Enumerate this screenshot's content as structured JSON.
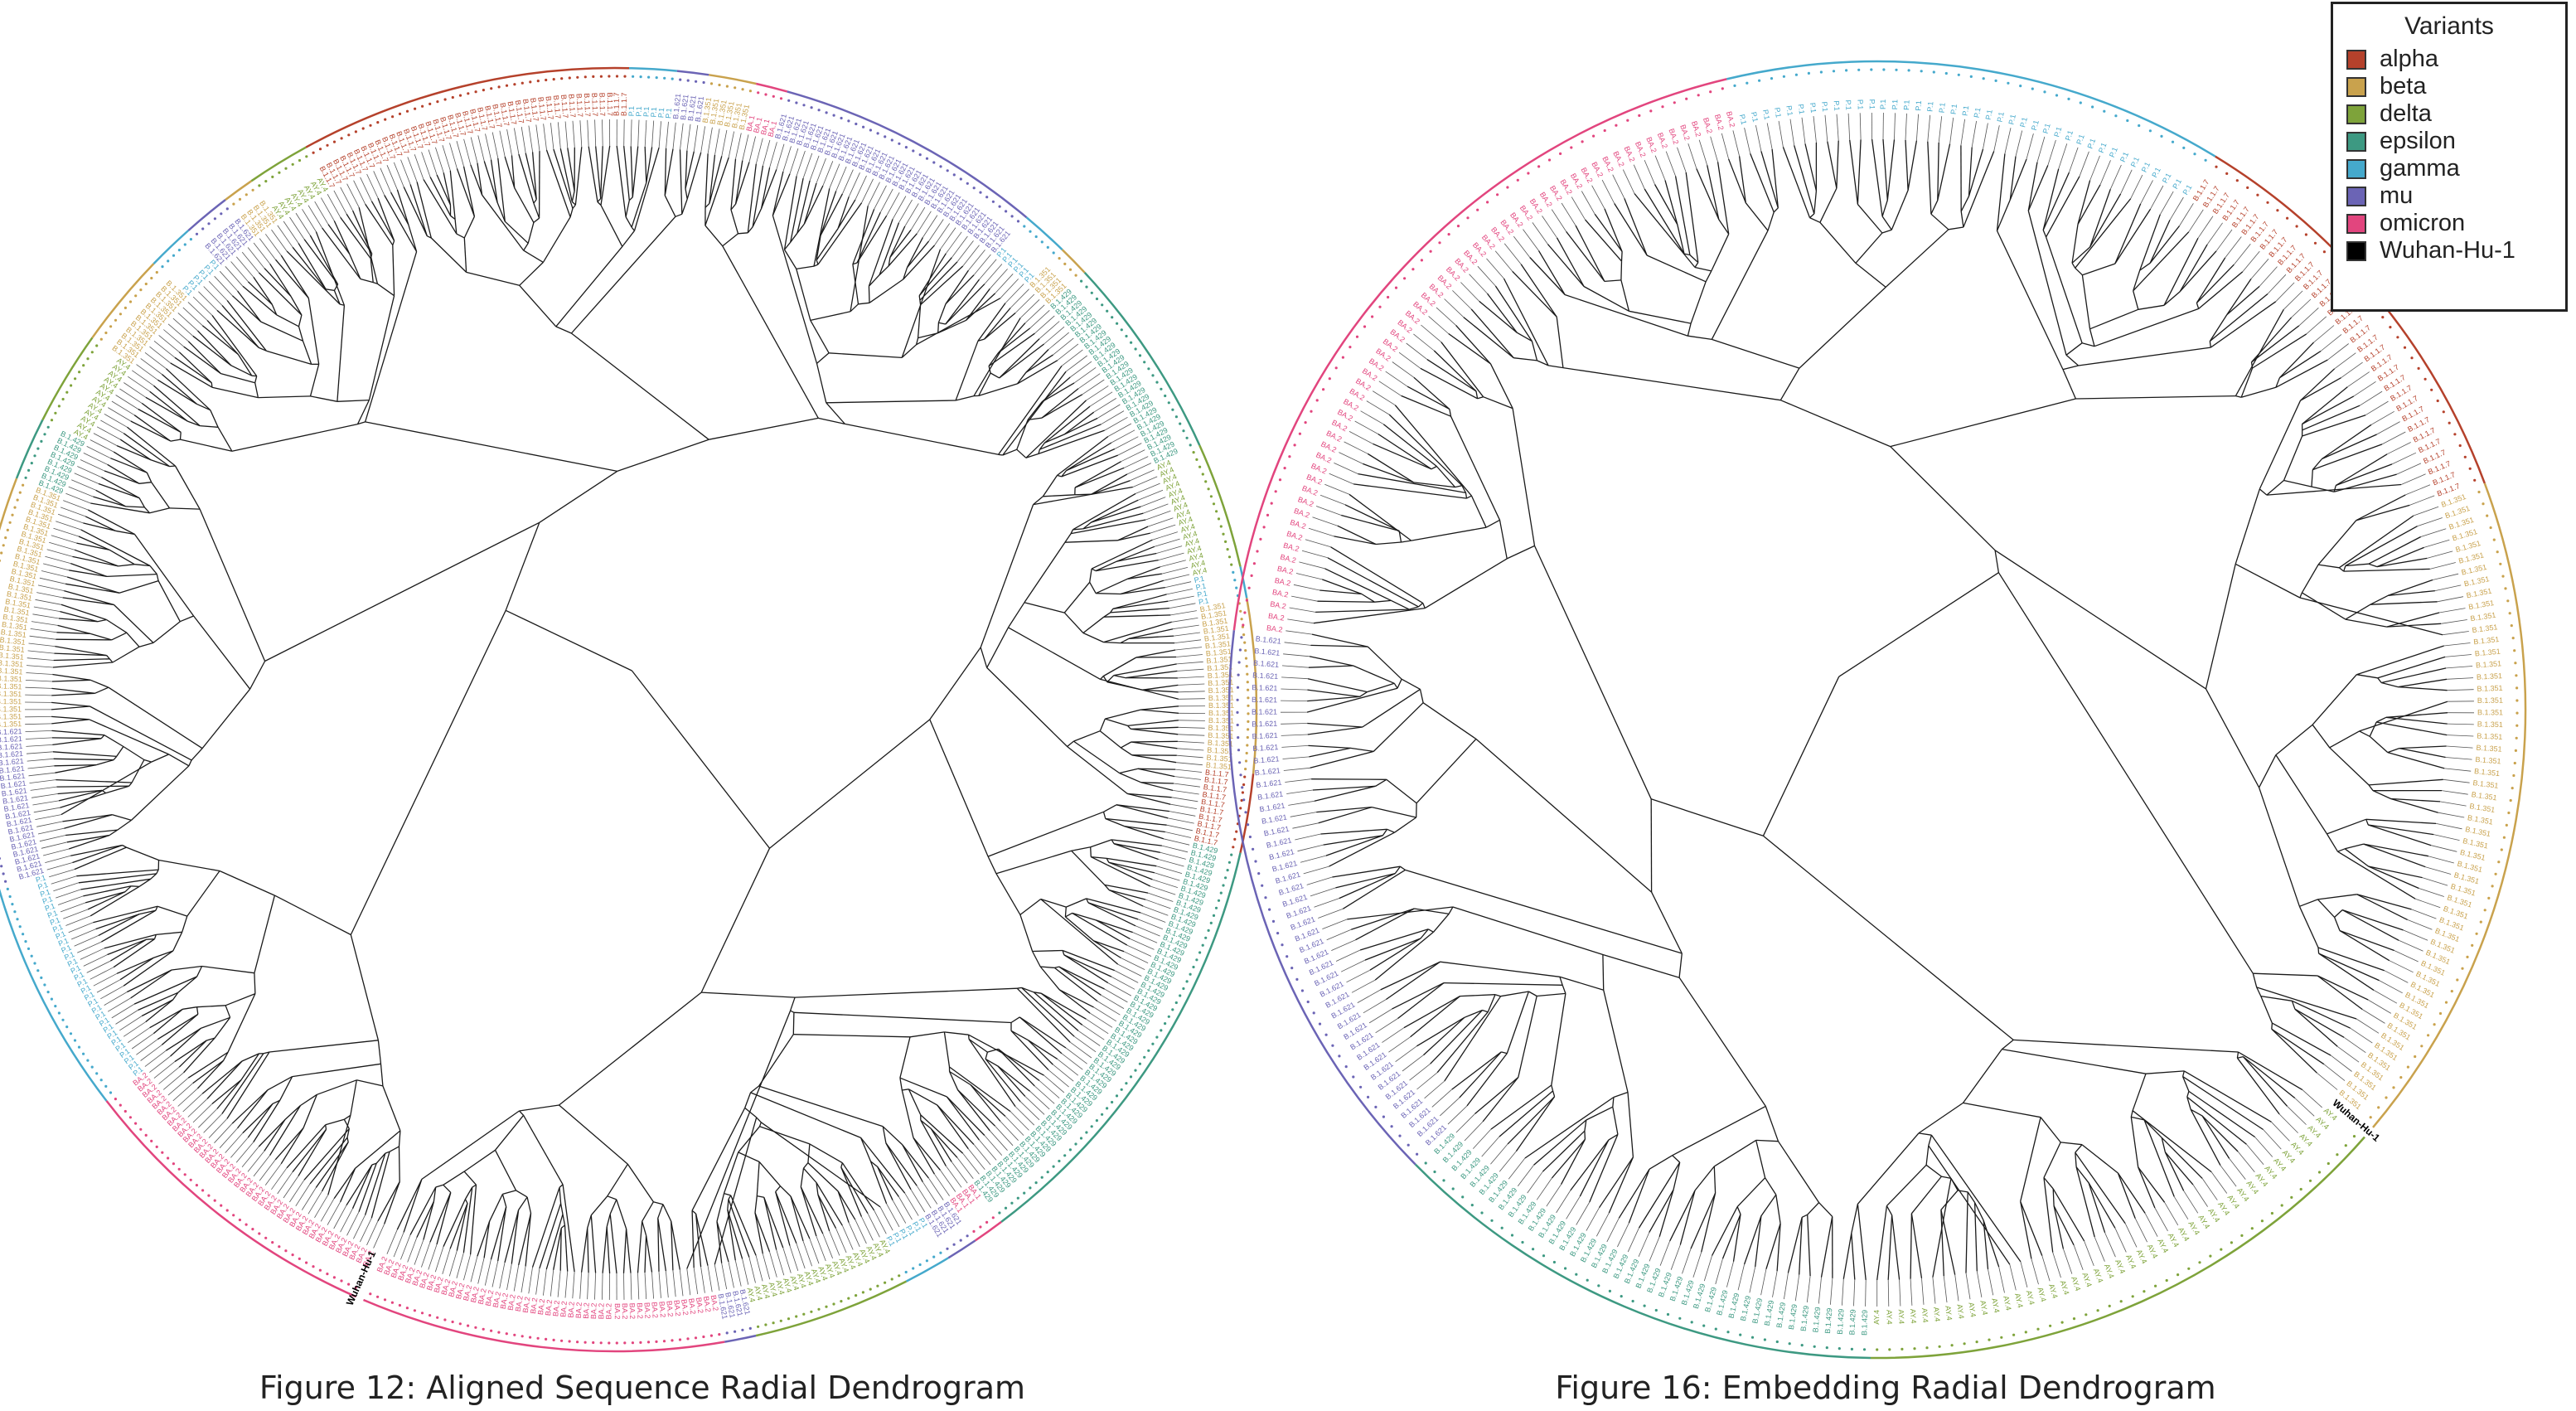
{
  "figures": [
    {
      "caption": "Figure 12: Aligned Sequence Radial Dendrogram",
      "root_label": "Wuhan-Hu-1",
      "segments": [
        {
          "variant": "omicron",
          "count": 40,
          "label": "BA.2"
        },
        {
          "variant": "gamma",
          "count": 30,
          "label": "P.1"
        },
        {
          "variant": "mu",
          "count": 20,
          "label": "B.1.621"
        },
        {
          "variant": "beta",
          "count": 32,
          "label": "B.1.351"
        },
        {
          "variant": "epsilon",
          "count": 8,
          "label": "B.1.429"
        },
        {
          "variant": "delta",
          "count": 12,
          "label": "AY.4"
        },
        {
          "variant": "beta",
          "count": 12,
          "label": "B.1.351"
        },
        {
          "variant": "gamma",
          "count": 6,
          "label": "P.1"
        },
        {
          "variant": "mu",
          "count": 6,
          "label": "B.1.621"
        },
        {
          "variant": "beta",
          "count": 4,
          "label": "B.1.351"
        },
        {
          "variant": "delta",
          "count": 8,
          "label": "AY.4"
        },
        {
          "variant": "alpha",
          "count": 42,
          "label": "B.1.1.7"
        },
        {
          "variant": "gamma",
          "count": 6,
          "label": "P.1"
        },
        {
          "variant": "mu",
          "count": 4,
          "label": "B.1.621"
        },
        {
          "variant": "beta",
          "count": 6,
          "label": "B.1.351"
        },
        {
          "variant": "omicron",
          "count": 4,
          "label": "BA.1"
        },
        {
          "variant": "mu",
          "count": 34,
          "label": "B.1.621"
        },
        {
          "variant": "gamma",
          "count": 6,
          "label": "P.1"
        },
        {
          "variant": "beta",
          "count": 4,
          "label": "B.1.351"
        },
        {
          "variant": "epsilon",
          "count": 26,
          "label": "B.1.429"
        },
        {
          "variant": "delta",
          "count": 16,
          "label": "AY.4"
        },
        {
          "variant": "gamma",
          "count": 4,
          "label": "P.1"
        },
        {
          "variant": "beta",
          "count": 22,
          "label": "B.1.351"
        },
        {
          "variant": "alpha",
          "count": 10,
          "label": "B.1.1.7"
        },
        {
          "variant": "epsilon",
          "count": 56,
          "label": "B.1.429"
        },
        {
          "variant": "omicron",
          "count": 4,
          "label": "BA.1"
        },
        {
          "variant": "mu",
          "count": 4,
          "label": "B.1.621"
        },
        {
          "variant": "gamma",
          "count": 6,
          "label": "P.1"
        },
        {
          "variant": "delta",
          "count": 20,
          "label": "AY.4"
        },
        {
          "variant": "mu",
          "count": 4,
          "label": "B.1.621"
        },
        {
          "variant": "omicron",
          "count": 46,
          "label": "BA.2"
        }
      ]
    },
    {
      "caption": "Figure 16: Embedding Radial Dendrogram",
      "root_label": "Wuhan-Hu-1",
      "segments": [
        {
          "variant": "delta",
          "count": 44,
          "label": "AY.4"
        },
        {
          "variant": "epsilon",
          "count": 40,
          "label": "B.1.429"
        },
        {
          "variant": "mu",
          "count": 46,
          "label": "B.1.621"
        },
        {
          "variant": "omicron",
          "count": 62,
          "label": "BA.2"
        },
        {
          "variant": "gamma",
          "count": 40,
          "label": "P.1"
        },
        {
          "variant": "alpha",
          "count": 34,
          "label": "B.1.1.7"
        },
        {
          "variant": "beta",
          "count": 54,
          "label": "B.1.351"
        }
      ]
    }
  ],
  "legend": {
    "title": "Variants",
    "items": [
      {
        "name": "alpha",
        "label": "alpha",
        "color": "#b5412b"
      },
      {
        "name": "beta",
        "label": "beta",
        "color": "#c9a24d"
      },
      {
        "name": "delta",
        "label": "delta",
        "color": "#7ea33a"
      },
      {
        "name": "epsilon",
        "label": "epsilon",
        "color": "#3d9982"
      },
      {
        "name": "gamma",
        "label": "gamma",
        "color": "#45a9cc"
      },
      {
        "name": "mu",
        "label": "mu",
        "color": "#6b64b5"
      },
      {
        "name": "omicron",
        "label": "omicron",
        "color": "#e2457e"
      },
      {
        "name": "Wuhan-Hu-1",
        "label": "Wuhan-Hu-1",
        "color": "#000000"
      }
    ]
  }
}
